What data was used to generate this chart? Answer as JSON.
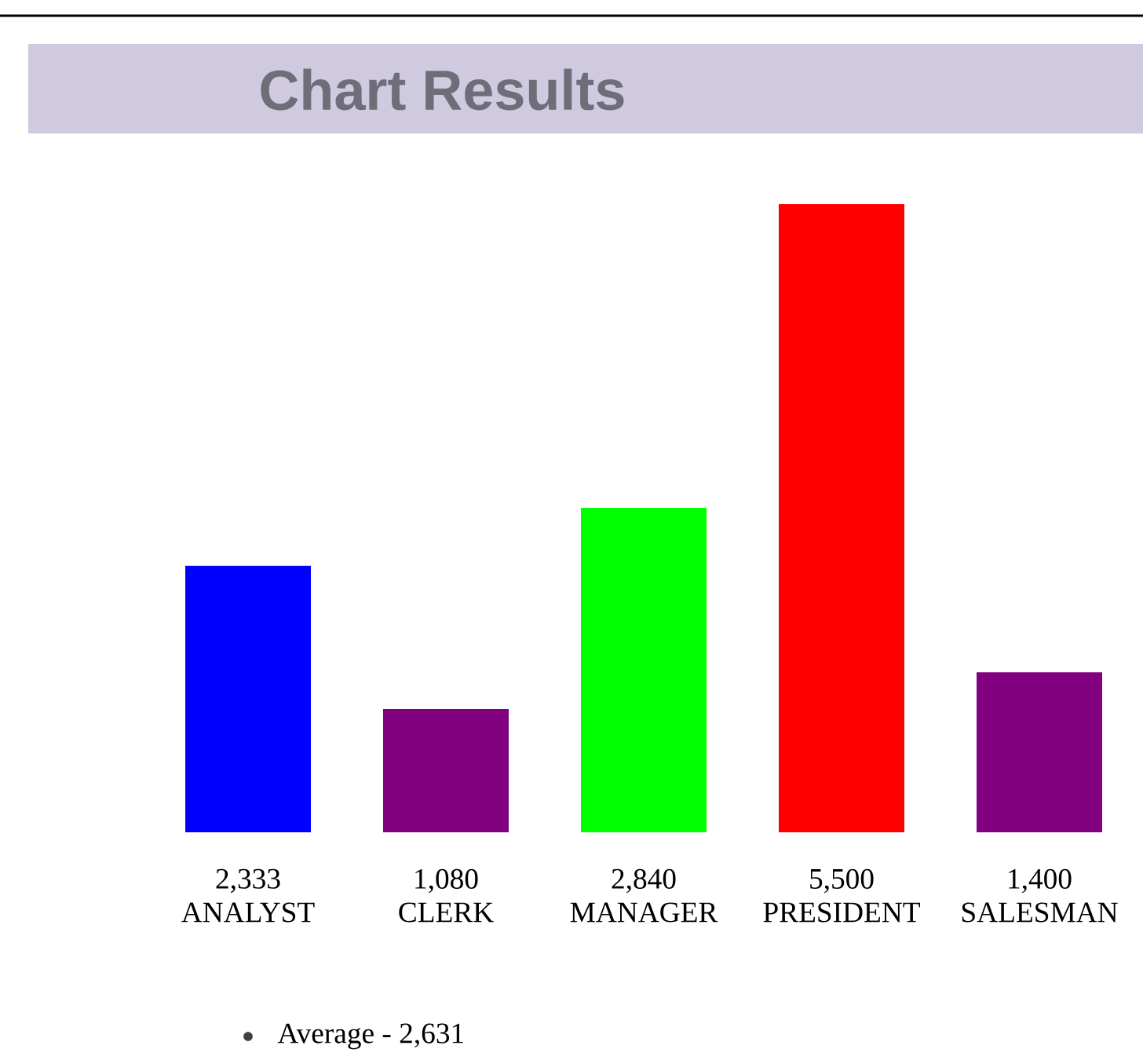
{
  "chart_data": {
    "type": "bar",
    "title": "Chart Results",
    "categories": [
      "ANALYST",
      "CLERK",
      "MANAGER",
      "PRESIDENT",
      "SALESMAN"
    ],
    "values": [
      2333,
      1080,
      2840,
      5500,
      1400
    ],
    "colors": [
      "#0000ff",
      "#800080",
      "#00ff00",
      "#ff0000",
      "#800080"
    ],
    "value_labels": [
      "2,333",
      "1,080",
      "2,840",
      "5,500",
      "1,400"
    ],
    "annotations": [
      "Average - 2,631"
    ]
  }
}
